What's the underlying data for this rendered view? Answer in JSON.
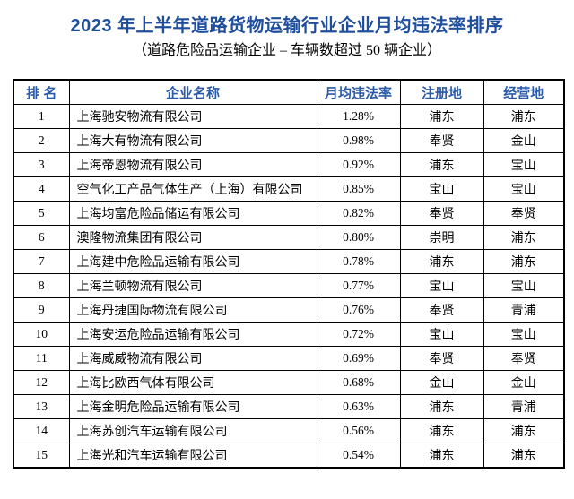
{
  "page": {
    "title": "2023 年上半年道路货物运输行业企业月均违法率排序",
    "subtitle": "（道路危险品运输企业 – 车辆数超过 50 辆企业）"
  },
  "colors": {
    "title_blue": "#1f4e9c",
    "header_blue": "#2b5ba8",
    "border": "#000000",
    "background": "#ffffff"
  },
  "table": {
    "headers": [
      "排  名",
      "企业名称",
      "月均违法率",
      "注册地",
      "经营地"
    ],
    "rows": [
      {
        "rank": "1",
        "company": "上海驰安物流有限公司",
        "rate": "1.28%",
        "registered": "浦东",
        "operating": "浦东"
      },
      {
        "rank": "2",
        "company": "上海大有物流有限公司",
        "rate": "0.98%",
        "registered": "奉贤",
        "operating": "金山"
      },
      {
        "rank": "3",
        "company": "上海帝恩物流有限公司",
        "rate": "0.92%",
        "registered": "浦东",
        "operating": "宝山"
      },
      {
        "rank": "4",
        "company": "空气化工产品气体生产（上海）有限公司",
        "rate": "0.85%",
        "registered": "宝山",
        "operating": "宝山"
      },
      {
        "rank": "5",
        "company": "上海均富危险品储运有限公司",
        "rate": "0.82%",
        "registered": "奉贤",
        "operating": "奉贤"
      },
      {
        "rank": "6",
        "company": "澳隆物流集团有限公司",
        "rate": "0.80%",
        "registered": "崇明",
        "operating": "浦东"
      },
      {
        "rank": "7",
        "company": "上海建中危险品运输有限公司",
        "rate": "0.78%",
        "registered": "浦东",
        "operating": "浦东"
      },
      {
        "rank": "8",
        "company": "上海兰顿物流有限公司",
        "rate": "0.77%",
        "registered": "宝山",
        "operating": "宝山"
      },
      {
        "rank": "9",
        "company": "上海丹捷国际物流有限公司",
        "rate": "0.76%",
        "registered": "奉贤",
        "operating": "青浦"
      },
      {
        "rank": "10",
        "company": "上海安运危险品运输有限公司",
        "rate": "0.72%",
        "registered": "宝山",
        "operating": "宝山"
      },
      {
        "rank": "11",
        "company": "上海威威物流有限公司",
        "rate": "0.69%",
        "registered": "奉贤",
        "operating": "奉贤"
      },
      {
        "rank": "12",
        "company": "上海比欧西气体有限公司",
        "rate": "0.68%",
        "registered": "金山",
        "operating": "金山"
      },
      {
        "rank": "13",
        "company": "上海金明危险品运输有限公司",
        "rate": "0.63%",
        "registered": "浦东",
        "operating": "青浦"
      },
      {
        "rank": "14",
        "company": "上海苏创汽车运输有限公司",
        "rate": "0.56%",
        "registered": "浦东",
        "operating": "浦东"
      },
      {
        "rank": "15",
        "company": "上海光和汽车运输有限公司",
        "rate": "0.54%",
        "registered": "浦东",
        "operating": "浦东"
      }
    ]
  }
}
